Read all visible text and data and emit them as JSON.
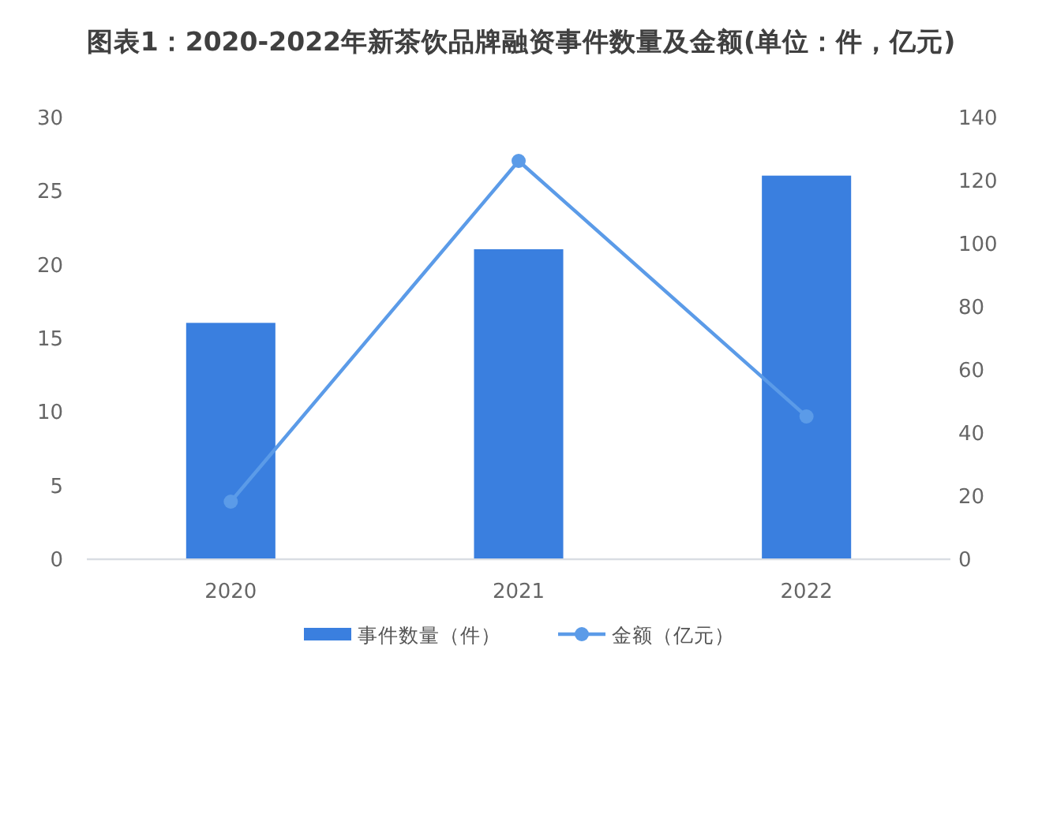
{
  "chart_data": {
    "type": "bar",
    "title": "图表1：2020-2022年新茶饮品牌融资事件数量及金额(单位：件，亿元)",
    "categories": [
      "2020",
      "2021",
      "2022"
    ],
    "series": [
      {
        "name": "事件数量（件）",
        "color": "#3a7fdf",
        "values": [
          16,
          21,
          26
        ]
      },
      {
        "name": "金额（亿元）",
        "type": "line",
        "axis": "y2",
        "color": "#5b9be8",
        "values": [
          18,
          126,
          45
        ]
      }
    ],
    "ylim": [
      0,
      30
    ],
    "yticks": [
      0,
      5,
      10,
      15,
      20,
      25,
      30
    ],
    "y2lim": [
      0,
      140
    ],
    "y2ticks": [
      0,
      20,
      40,
      60,
      80,
      100,
      120,
      140
    ],
    "grid": false,
    "legend": "bottom",
    "marker": "circle",
    "line_style": "solid"
  }
}
